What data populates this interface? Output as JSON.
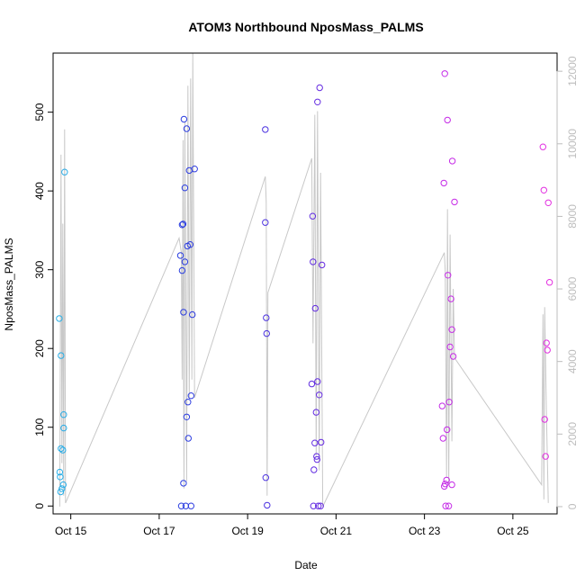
{
  "chart_data": {
    "type": "scatter",
    "title": "ATOM3 Northbound NposMass_PALMS",
    "xlabel": "Date",
    "ylabel": "NposMass_PALMS",
    "y2label": "",
    "xlim": [
      14.6,
      26.0
    ],
    "ylim": [
      -10,
      575
    ],
    "y2lim": [
      -200,
      12500
    ],
    "x_ticks": [
      {
        "value": 15,
        "label": "Oct 15"
      },
      {
        "value": 17,
        "label": "Oct 17"
      },
      {
        "value": 19,
        "label": "Oct 19"
      },
      {
        "value": 21,
        "label": "Oct 21"
      },
      {
        "value": 23,
        "label": "Oct 23"
      },
      {
        "value": 25,
        "label": "Oct 25"
      }
    ],
    "y_ticks": [
      0,
      100,
      200,
      300,
      400,
      500
    ],
    "y2_ticks": [
      0,
      2000,
      4000,
      6000,
      8000,
      10000,
      12000
    ],
    "grid": false,
    "colors": {
      "line": "#c8c8c8",
      "right_axis": "#bdbdbd",
      "axis": "#000000",
      "point_gradient": [
        "#29b6e8",
        "#2a3fe0",
        "#5a2ce0",
        "#c02be8",
        "#e62ee0"
      ]
    },
    "line_series": {
      "name": "",
      "axis": "right",
      "points": [
        [
          14.75,
          0
        ],
        [
          14.78,
          9700
        ],
        [
          14.8,
          1200
        ],
        [
          14.82,
          7800
        ],
        [
          14.84,
          300
        ],
        [
          14.86,
          10400
        ],
        [
          14.88,
          100
        ],
        [
          17.45,
          7400
        ],
        [
          17.5,
          7000
        ],
        [
          17.52,
          3500
        ],
        [
          17.54,
          10100
        ],
        [
          17.56,
          500
        ],
        [
          17.58,
          10600
        ],
        [
          17.62,
          700
        ],
        [
          17.65,
          11600
        ],
        [
          17.68,
          3000
        ],
        [
          17.71,
          11800
        ],
        [
          17.74,
          3500
        ],
        [
          17.76,
          12500
        ],
        [
          17.8,
          3000
        ],
        [
          19.4,
          9100
        ],
        [
          19.42,
          8400
        ],
        [
          19.44,
          300
        ],
        [
          19.46,
          5900
        ],
        [
          20.45,
          9600
        ],
        [
          20.48,
          4500
        ],
        [
          20.52,
          10800
        ],
        [
          20.55,
          1400
        ],
        [
          20.58,
          10900
        ],
        [
          20.62,
          1000
        ],
        [
          20.65,
          9200
        ],
        [
          20.7,
          0
        ],
        [
          23.45,
          7000
        ],
        [
          23.47,
          6500
        ],
        [
          23.5,
          800
        ],
        [
          23.52,
          8200
        ],
        [
          23.55,
          600
        ],
        [
          23.58,
          7500
        ],
        [
          23.62,
          1800
        ],
        [
          23.65,
          6000
        ],
        [
          23.68,
          4100
        ],
        [
          25.65,
          600
        ],
        [
          25.68,
          5300
        ],
        [
          25.7,
          200
        ],
        [
          25.72,
          5500
        ],
        [
          25.76,
          2500
        ],
        [
          25.8,
          100
        ]
      ]
    },
    "series": [
      {
        "name": "",
        "axis": "left",
        "points": [
          [
            14.74,
            238
          ],
          [
            14.75,
            43
          ],
          [
            14.76,
            37
          ],
          [
            14.77,
            18
          ],
          [
            14.78,
            73
          ],
          [
            14.78,
            191
          ],
          [
            14.8,
            22
          ],
          [
            14.82,
            71
          ],
          [
            14.83,
            27
          ],
          [
            14.84,
            116
          ],
          [
            14.84,
            99
          ],
          [
            14.86,
            424
          ],
          [
            17.48,
            318
          ],
          [
            17.5,
            0
          ],
          [
            17.52,
            299
          ],
          [
            17.52,
            357
          ],
          [
            17.54,
            358
          ],
          [
            17.55,
            246
          ],
          [
            17.55,
            29
          ],
          [
            17.56,
            491
          ],
          [
            17.58,
            404
          ],
          [
            17.58,
            310
          ],
          [
            17.6,
            0
          ],
          [
            17.62,
            113
          ],
          [
            17.62,
            479
          ],
          [
            17.64,
            330
          ],
          [
            17.65,
            132
          ],
          [
            17.66,
            86
          ],
          [
            17.68,
            426
          ],
          [
            17.7,
            332
          ],
          [
            17.72,
            140
          ],
          [
            17.72,
            0
          ],
          [
            17.75,
            243
          ],
          [
            17.8,
            428
          ],
          [
            19.4,
            478
          ],
          [
            19.4,
            360
          ],
          [
            19.41,
            36
          ],
          [
            19.42,
            239
          ],
          [
            19.43,
            219
          ],
          [
            19.44,
            1
          ],
          [
            20.45,
            155
          ],
          [
            20.47,
            368
          ],
          [
            20.48,
            310
          ],
          [
            20.49,
            0
          ],
          [
            20.5,
            46
          ],
          [
            20.52,
            80
          ],
          [
            20.53,
            251
          ],
          [
            20.55,
            119
          ],
          [
            20.56,
            63
          ],
          [
            20.57,
            59
          ],
          [
            20.58,
            513
          ],
          [
            20.58,
            158
          ],
          [
            20.6,
            0
          ],
          [
            20.62,
            141
          ],
          [
            20.63,
            531
          ],
          [
            20.65,
            0
          ],
          [
            20.66,
            81
          ],
          [
            20.68,
            306
          ],
          [
            23.4,
            127
          ],
          [
            23.42,
            86
          ],
          [
            23.44,
            410
          ],
          [
            23.45,
            25
          ],
          [
            23.46,
            549
          ],
          [
            23.47,
            28
          ],
          [
            23.48,
            0
          ],
          [
            23.5,
            33
          ],
          [
            23.51,
            97
          ],
          [
            23.52,
            490
          ],
          [
            23.53,
            293
          ],
          [
            23.55,
            0
          ],
          [
            23.56,
            132
          ],
          [
            23.58,
            202
          ],
          [
            23.6,
            263
          ],
          [
            23.62,
            224
          ],
          [
            23.62,
            27
          ],
          [
            23.63,
            438
          ],
          [
            23.65,
            190
          ],
          [
            23.68,
            386
          ],
          [
            25.68,
            456
          ],
          [
            25.7,
            401
          ],
          [
            25.72,
            110
          ],
          [
            25.74,
            63
          ],
          [
            25.76,
            207
          ],
          [
            25.78,
            198
          ],
          [
            25.8,
            385
          ],
          [
            25.83,
            284
          ]
        ]
      }
    ]
  }
}
